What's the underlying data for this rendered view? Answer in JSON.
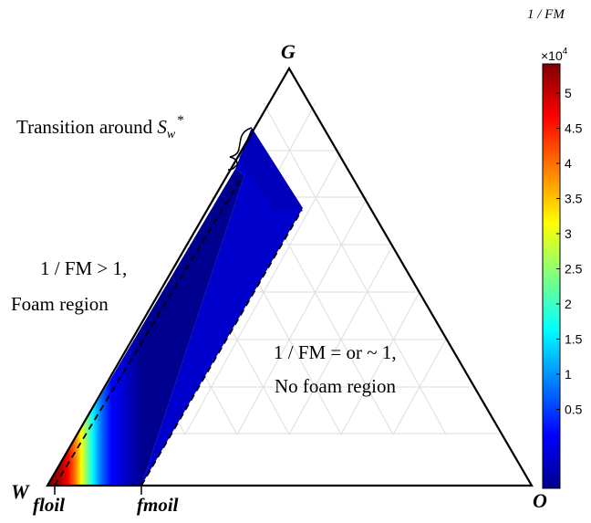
{
  "figure": {
    "vertices": {
      "top": "G",
      "left": "W",
      "right": "O"
    },
    "bottom_labels": [
      "floil",
      "fmoil"
    ],
    "annotations": {
      "transition": {
        "prefix": "Transition around ",
        "symbol": "S",
        "subscript": "w",
        "superscript": "*"
      },
      "foam_line1": "1 / FM > 1,",
      "foam_line2": "Foam region",
      "nofoam_line1": "1 / FM = or ~ 1,",
      "nofoam_line2": "No foam region"
    }
  },
  "colorbar": {
    "title": "1 / FM",
    "multiplier": "×10",
    "multiplier_exp": "4",
    "ticks": [
      "5",
      "4.5",
      "4",
      "3.5",
      "3",
      "2.5",
      "2",
      "1.5",
      "1",
      "0.5"
    ],
    "colors": [
      "#800000",
      "#ff0000",
      "#ff8000",
      "#ffff00",
      "#80ff80",
      "#00ffff",
      "#0080ff",
      "#0000ff",
      "#00008f"
    ]
  }
}
